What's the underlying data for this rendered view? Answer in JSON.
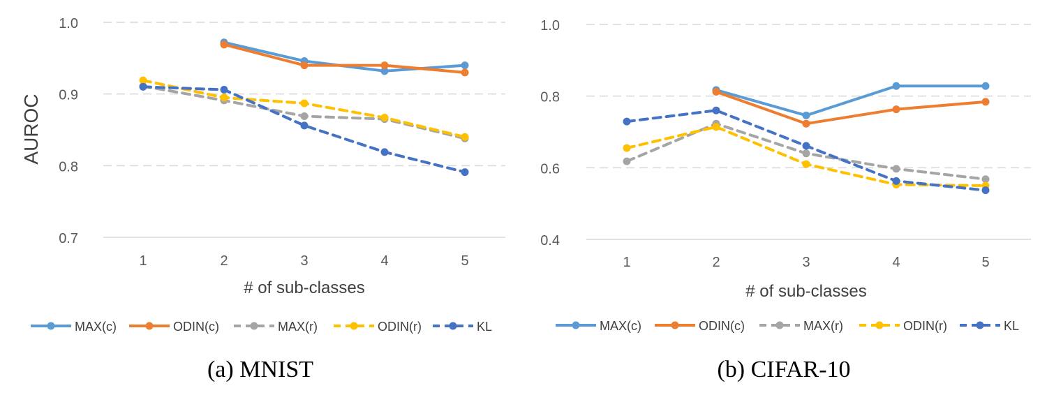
{
  "series_styles": [
    {
      "name": "MAX(c)",
      "color": "#5B9BD5",
      "dashed": false
    },
    {
      "name": "ODIN(c)",
      "color": "#ED7D31",
      "dashed": false
    },
    {
      "name": "MAX(r)",
      "color": "#A5A5A5",
      "dashed": true
    },
    {
      "name": "ODIN(r)",
      "color": "#FFC000",
      "dashed": true
    },
    {
      "name": "KL",
      "color": "#4472C4",
      "dashed": true
    }
  ],
  "chart_data": [
    {
      "type": "line",
      "caption": "(a) MNIST",
      "xlabel": "# of sub-classes",
      "ylabel": "AUROC",
      "categories": [
        "1",
        "2",
        "3",
        "4",
        "5"
      ],
      "ylim": [
        0.7,
        1.0
      ],
      "yticks": [
        "0.7",
        "0.8",
        "0.9",
        "1.0"
      ],
      "ytick_values": [
        0.7,
        0.8,
        0.9,
        1.0
      ],
      "legend_position": "bottom",
      "series": [
        {
          "name": "MAX(c)",
          "values": [
            null,
            0.972,
            0.946,
            0.932,
            0.94
          ]
        },
        {
          "name": "ODIN(c)",
          "values": [
            null,
            0.969,
            0.94,
            0.94,
            0.93
          ]
        },
        {
          "name": "MAX(r)",
          "values": [
            0.911,
            0.891,
            0.869,
            0.865,
            0.838
          ]
        },
        {
          "name": "ODIN(r)",
          "values": [
            0.919,
            0.895,
            0.887,
            0.867,
            0.84
          ]
        },
        {
          "name": "KL",
          "values": [
            0.91,
            0.906,
            0.856,
            0.819,
            0.791
          ]
        }
      ]
    },
    {
      "type": "line",
      "caption": "(b) CIFAR-10",
      "xlabel": "# of sub-classes",
      "ylabel": "",
      "categories": [
        "1",
        "2",
        "3",
        "4",
        "5"
      ],
      "ylim": [
        0.4,
        1.0
      ],
      "yticks": [
        "0.4",
        "0.6",
        "0.8",
        "1.0"
      ],
      "ytick_values": [
        0.4,
        0.6,
        0.8,
        1.0
      ],
      "legend_position": "bottom",
      "series": [
        {
          "name": "MAX(c)",
          "values": [
            null,
            0.817,
            0.746,
            0.828,
            0.828
          ]
        },
        {
          "name": "ODIN(c)",
          "values": [
            null,
            0.812,
            0.723,
            0.763,
            0.784
          ]
        },
        {
          "name": "MAX(r)",
          "values": [
            0.618,
            0.723,
            0.64,
            0.597,
            0.568
          ]
        },
        {
          "name": "ODIN(r)",
          "values": [
            0.655,
            0.714,
            0.61,
            0.553,
            0.55
          ]
        },
        {
          "name": "KL",
          "values": [
            0.729,
            0.76,
            0.661,
            0.563,
            0.537
          ]
        }
      ]
    }
  ]
}
